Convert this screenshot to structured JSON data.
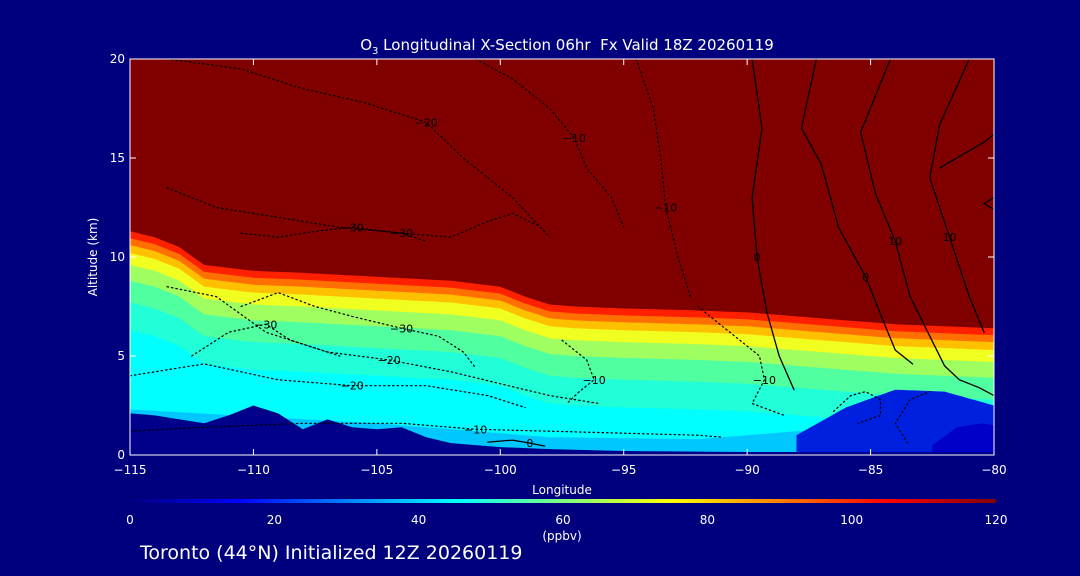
{
  "chart_data": {
    "type": "heatmap",
    "title_prefix": "O",
    "title_subscript": "3",
    "title_rest": " Longitudinal X-Section 06hr  Fx Valid 18Z 20260119",
    "xlabel": "Longitude",
    "ylabel": "Altitude (km)",
    "xlim": [
      -115,
      -80
    ],
    "ylim": [
      0,
      20
    ],
    "x_ticks": [
      -115,
      -110,
      -105,
      -100,
      -95,
      -90,
      -85,
      -80
    ],
    "x_tick_labels": [
      "−115",
      "−110",
      "−105",
      "−100",
      "−95",
      "−90",
      "−85",
      "−80"
    ],
    "y_ticks": [
      0,
      5,
      10,
      15,
      20
    ],
    "y_tick_labels": [
      "0",
      "5",
      "10",
      "15",
      "20"
    ],
    "colorbar": {
      "label": "(ppbv)",
      "range": [
        0,
        120
      ],
      "ticks": [
        0,
        20,
        40,
        60,
        80,
        100,
        120
      ],
      "tick_labels": [
        "0",
        "20",
        "40",
        "60",
        "80",
        "100",
        "120"
      ],
      "colors": [
        "#00007f",
        "#0000ff",
        "#0080ff",
        "#00ffff",
        "#80ff80",
        "#ffff00",
        "#ff8000",
        "#ff0000",
        "#800000"
      ]
    },
    "tropopause_km": {
      "x": [
        -115,
        -114,
        -113,
        -112,
        -110,
        -108,
        -105,
        -102,
        -100,
        -99,
        -98,
        -97,
        -95,
        -92,
        -90,
        -88,
        -86,
        -84,
        -82,
        -80
      ],
      "y": [
        11.3,
        11.0,
        10.5,
        9.6,
        9.3,
        9.2,
        9.0,
        8.8,
        8.5,
        8.0,
        7.6,
        7.5,
        7.4,
        7.3,
        7.2,
        7.0,
        6.8,
        6.6,
        6.5,
        6.4
      ]
    },
    "terrain_km": {
      "x": [
        -115,
        -114,
        -113,
        -112,
        -111,
        -110,
        -109,
        -108,
        -107,
        -106,
        -105,
        -104,
        -103,
        -102,
        -100,
        -98,
        -95,
        -90,
        -85,
        -80
      ],
      "y": [
        2.1,
        2.0,
        1.8,
        1.6,
        2.0,
        2.5,
        2.1,
        1.3,
        1.8,
        1.4,
        1.3,
        1.4,
        0.9,
        0.6,
        0.4,
        0.3,
        0.2,
        0.15,
        0.15,
        0.15
      ]
    },
    "low_ozone_region": {
      "x": [
        -88,
        -86,
        -84,
        -82,
        -80
      ],
      "top_km": [
        1.0,
        2.4,
        3.3,
        3.2,
        2.5
      ]
    },
    "solid_contours": [
      {
        "label": "0",
        "x": [
          -89.8,
          -89.4,
          -89.8,
          -89.6,
          -89.2,
          -88.7,
          -88.1
        ],
        "y": [
          20,
          16.5,
          13,
          10,
          7.2,
          5,
          3.3
        ]
      },
      {
        "label": "0",
        "x": [
          -87.2,
          -87.8,
          -87.0,
          -86.3,
          -85.2,
          -84.4,
          -84.0,
          -83.3
        ],
        "y": [
          20,
          16.5,
          14.7,
          11.5,
          9,
          6.5,
          5.3,
          4.6
        ]
      },
      {
        "label": "10",
        "x": [
          -84.2,
          -85.4,
          -84.8,
          -84.0,
          -83.4,
          -82.8,
          -82.0
        ],
        "y": [
          20,
          16.3,
          13.2,
          10.8,
          8,
          6.5,
          4.5
        ]
      },
      {
        "label": "10",
        "x": [
          -81.0,
          -82.2,
          -82.6,
          -81.8,
          -81.0,
          -80.4
        ],
        "y": [
          20,
          16.7,
          14.0,
          11.0,
          8.0,
          6.2
        ]
      },
      {
        "label": "",
        "x": [
          -82.2,
          -80.4,
          -80.0
        ],
        "y": [
          14.5,
          15.8,
          16.2
        ]
      },
      {
        "label": "",
        "x": [
          -80.0,
          -80.4,
          -80.0
        ],
        "y": [
          12.4,
          12.7,
          13.0
        ]
      },
      {
        "label": "",
        "x": [
          -80.0,
          -80.6,
          -81.4,
          -82.0
        ],
        "y": [
          3.0,
          3.4,
          3.8,
          4.5
        ]
      },
      {
        "label": "0",
        "x": [
          -100.5,
          -99.5,
          -98.8,
          -98.2
        ],
        "y": [
          0.65,
          0.75,
          0.6,
          0.45
        ]
      }
    ],
    "dotted_contours": [
      {
        "label": "-20",
        "x": [
          -113.5,
          -110.5,
          -108,
          -105.5,
          -103,
          -101.5,
          -99.5,
          -98
        ],
        "y": [
          20,
          19.5,
          18.5,
          17.8,
          16.8,
          15,
          13,
          11
        ]
      },
      {
        "label": "-30",
        "x": [
          -113.5,
          -111.5,
          -109,
          -106.5,
          -104,
          -102,
          -100.5,
          -99.5,
          -98.5
        ],
        "y": [
          13.5,
          12.5,
          12.0,
          11.5,
          11.2,
          11.0,
          11.8,
          12.2,
          11.6
        ]
      },
      {
        "label": "-30",
        "x": [
          -110.5,
          -109,
          -107.5,
          -106,
          -104,
          -103
        ],
        "y": [
          11.2,
          11.0,
          11.3,
          11.5,
          11.2,
          10.8
        ]
      },
      {
        "label": "-10",
        "x": [
          -101,
          -99.5,
          -98,
          -97,
          -96.5,
          -95.5,
          -95
        ],
        "y": [
          20,
          19,
          17.5,
          16,
          14.5,
          13,
          11.5
        ]
      },
      {
        "label": "-10",
        "x": [
          -94.5,
          -93.8,
          -93.5,
          -93.3,
          -92.8,
          -92.3
        ],
        "y": [
          20,
          17.5,
          15,
          12.5,
          10,
          8
        ]
      },
      {
        "label": "-30",
        "x": [
          -110.5,
          -109,
          -107.5,
          -106,
          -104,
          -102.5,
          -101.5,
          -101
        ],
        "y": [
          7.5,
          8.2,
          7.5,
          7.0,
          6.4,
          6.0,
          5.2,
          4.4
        ]
      },
      {
        "label": "-30",
        "x": [
          -112.5,
          -111,
          -109.5,
          -108.5,
          -106.5
        ],
        "y": [
          5.0,
          6.2,
          6.6,
          5.8,
          5.0
        ]
      },
      {
        "label": "-20",
        "x": [
          -113.5,
          -111.5,
          -109.5,
          -107,
          -104.5,
          -102,
          -100,
          -98,
          -96
        ],
        "y": [
          8.5,
          8.0,
          6.2,
          5.2,
          4.8,
          4.2,
          3.6,
          3.0,
          2.6
        ]
      },
      {
        "label": "-20",
        "x": [
          -115,
          -112,
          -109,
          -106,
          -103,
          -100.5,
          -99
        ],
        "y": [
          4.0,
          4.6,
          3.8,
          3.5,
          3.5,
          3.0,
          2.4
        ]
      },
      {
        "label": "-10",
        "x": [
          -115,
          -112,
          -108,
          -104,
          -101,
          -98,
          -95,
          -92,
          -91
        ],
        "y": [
          1.2,
          1.4,
          1.6,
          1.6,
          1.3,
          1.2,
          1.1,
          1.0,
          0.9
        ]
      },
      {
        "label": "-10",
        "x": [
          -92,
          -90.5,
          -89.5,
          -89.3,
          -89.8,
          -88.5
        ],
        "y": [
          7.5,
          6.0,
          5.0,
          3.8,
          2.6,
          2.0
        ]
      },
      {
        "label": "-10",
        "x": [
          -97.5,
          -96.5,
          -96.2,
          -96.8,
          -97.3
        ],
        "y": [
          5.8,
          4.8,
          3.8,
          3.2,
          2.6
        ]
      },
      {
        "label": "",
        "x": [
          -86.5,
          -85.8,
          -85.2,
          -84.6,
          -84.6,
          -85.5
        ],
        "y": [
          2.2,
          3.0,
          3.2,
          2.8,
          2.0,
          1.6
        ]
      },
      {
        "label": "",
        "x": [
          -83.5,
          -84.0,
          -83.4,
          -82.6
        ],
        "y": [
          0.6,
          1.6,
          2.8,
          3.2
        ]
      }
    ]
  },
  "footer": {
    "text": "Toronto (44°N) Initialized 12Z 20260119"
  }
}
